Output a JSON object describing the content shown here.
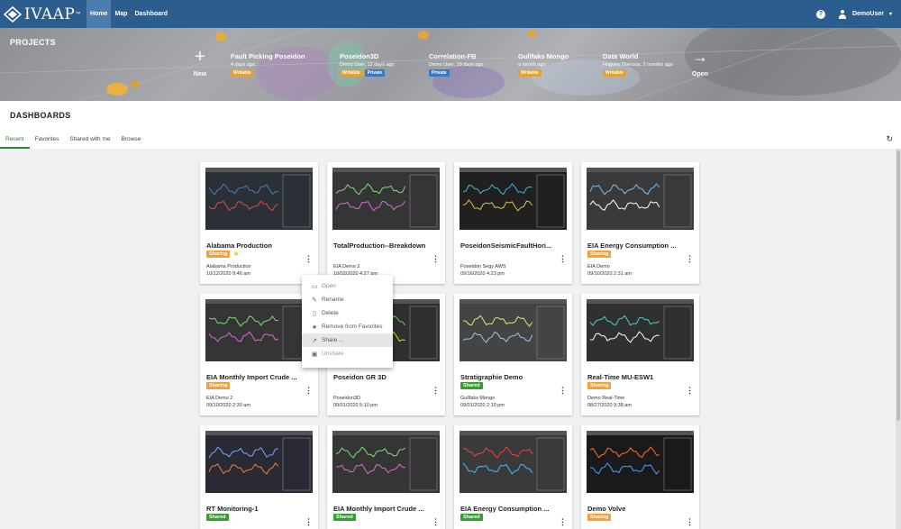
{
  "app": {
    "logo_text": "IVAAP",
    "logo_tm": "™"
  },
  "nav": [
    {
      "label": "Home",
      "active": true
    },
    {
      "label": "Map",
      "active": false
    },
    {
      "label": "Dashboard",
      "active": false
    }
  ],
  "topbar": {
    "help_icon": "?",
    "user_name": "DemoUser",
    "caret": "▾"
  },
  "projects": {
    "title": "PROJECTS",
    "new_label": "New",
    "open_label": "Open",
    "items": [
      {
        "name": "Fault Picking Poseidon",
        "meta": "4 days ago",
        "tags": [
          "Writable"
        ]
      },
      {
        "name": "Poseidon3D",
        "meta": "Demo User, 12 days ago",
        "tags": [
          "Writable",
          "Private"
        ]
      },
      {
        "name": "Correlation-FB",
        "meta": "Demo User, 19 days ago",
        "tags": [
          "Private"
        ]
      },
      {
        "name": "Gullfaks Mongo",
        "meta": "a month ago",
        "tags": [
          "Writable"
        ]
      },
      {
        "name": "Data World",
        "meta": "Hugues Thevoux, 2 months ago",
        "tags": [
          "Writable"
        ]
      }
    ]
  },
  "dashboards": {
    "title": "DASHBOARDS",
    "tabs": [
      {
        "label": "Recent",
        "active": true
      },
      {
        "label": "Favorites",
        "active": false
      },
      {
        "label": "Shared with me",
        "active": false
      },
      {
        "label": "Browse",
        "active": false
      }
    ],
    "cards": [
      {
        "title": "Alabama Production",
        "badge": "Sharing",
        "starred": true,
        "project": "Alabama Production",
        "date": "10/12/2020 9:46 am"
      },
      {
        "title": "TotalProduction--Breakdown",
        "badge": "",
        "starred": false,
        "project": "EIA Demo 2",
        "date": "10/02/2020 4:27 pm"
      },
      {
        "title": "PoseidonSeismicFaultHori...",
        "badge": "",
        "starred": false,
        "project": "Poseidon Segy AWS",
        "date": "09/16/2020 4:23 pm"
      },
      {
        "title": "EIA Energy Consumption ...",
        "badge": "Sharing",
        "starred": false,
        "project": "EIA Demo",
        "date": "09/10/2020 2:31 am"
      },
      {
        "title": "EIA Monthly Import Crude ...",
        "badge": "Sharing",
        "starred": false,
        "project": "EIA Demo 2",
        "date": "09/10/2020 2:30 am"
      },
      {
        "title": "Poseidon GR 3D",
        "badge": "",
        "starred": false,
        "project": "Poseidon3D",
        "date": "09/01/2020 5:10 pm"
      },
      {
        "title": "Stratigraphie Demo",
        "badge": "Shared",
        "starred": false,
        "project": "Gullfaks Mongo",
        "date": "09/01/2020 2:10 pm"
      },
      {
        "title": "Real-Time MU-ESW1",
        "badge": "Sharing",
        "starred": false,
        "project": "Demo Real-Time",
        "date": "08/27/2020 9:38 am"
      },
      {
        "title": "RT Monitoring-1",
        "badge": "Shared",
        "starred": false,
        "project": "",
        "date": ""
      },
      {
        "title": "EIA Monthly Import Crude ...",
        "badge": "Shared",
        "starred": false,
        "project": "",
        "date": ""
      },
      {
        "title": "EIA Energy Consumption ...",
        "badge": "Shared",
        "starred": false,
        "project": "",
        "date": ""
      },
      {
        "title": "Demo Volve",
        "badge": "Sharing",
        "starred": false,
        "project": "",
        "date": ""
      }
    ]
  },
  "context_menu": {
    "items": [
      {
        "label": "Open",
        "icon": "folder-open-icon",
        "state": "normal"
      },
      {
        "label": "Rename",
        "icon": "pencil-icon",
        "state": "normal"
      },
      {
        "label": "Delete",
        "icon": "trash-icon",
        "state": "normal"
      },
      {
        "label": "Remove from Favorites",
        "icon": "star-icon",
        "state": "normal"
      },
      {
        "label": "Share ...",
        "icon": "share-icon",
        "state": "hover"
      },
      {
        "label": "Unshare",
        "icon": "lock-icon",
        "state": "normal"
      }
    ]
  },
  "colors": {
    "topbar": "#2c5d8f",
    "accent_green": "#2c8a2c",
    "sharing": "#f0a23a",
    "shared": "#32a02c",
    "writable": "#e2a23a",
    "private": "#3a78c2"
  }
}
